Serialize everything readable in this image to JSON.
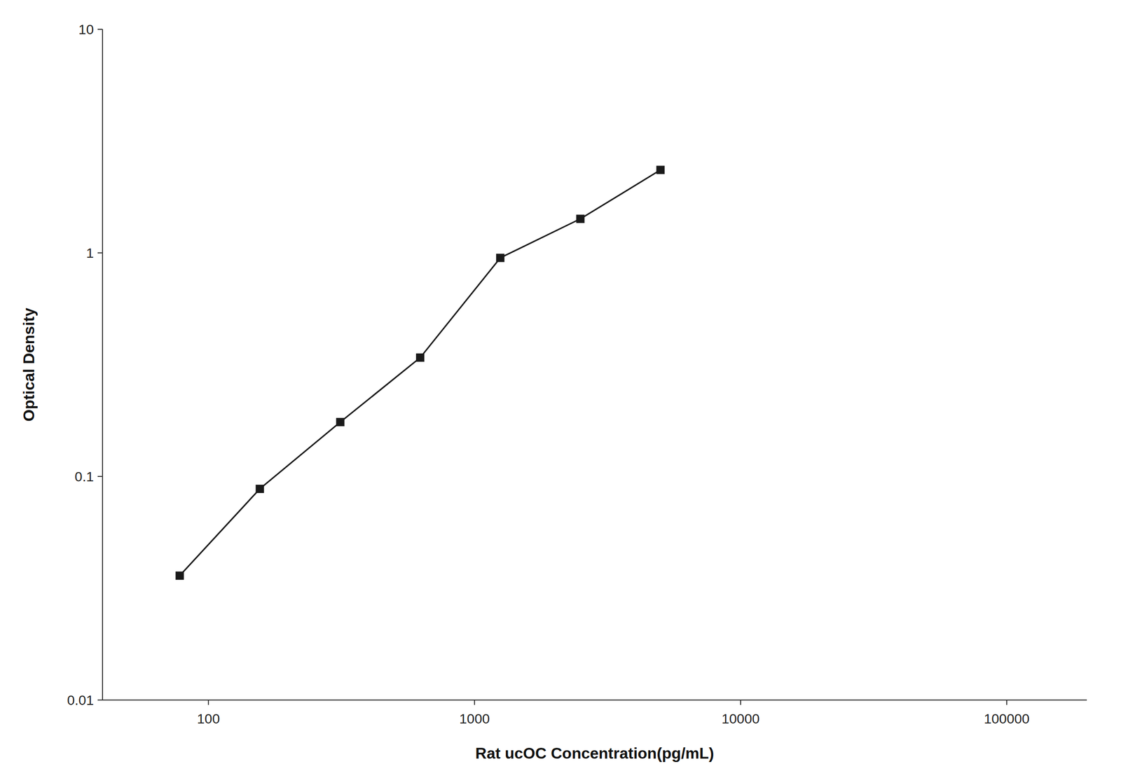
{
  "chart_data": {
    "type": "line",
    "xlabel": "Rat ucOC Concentration(pg/mL)",
    "ylabel": "Optical Density",
    "x": [
      78,
      156,
      313,
      625,
      1250,
      2500,
      5000
    ],
    "values": [
      0.036,
      0.088,
      0.175,
      0.34,
      0.95,
      1.42,
      2.35
    ],
    "xlim": [
      40,
      200000
    ],
    "ylim": [
      0.01,
      10
    ],
    "xticks": [
      100,
      1000,
      10000,
      100000
    ],
    "yticks": [
      0.01,
      0.1,
      1,
      10
    ],
    "log": true,
    "grid": false,
    "color": "#1a1a1a",
    "marker": "square",
    "line_style": "solid"
  }
}
